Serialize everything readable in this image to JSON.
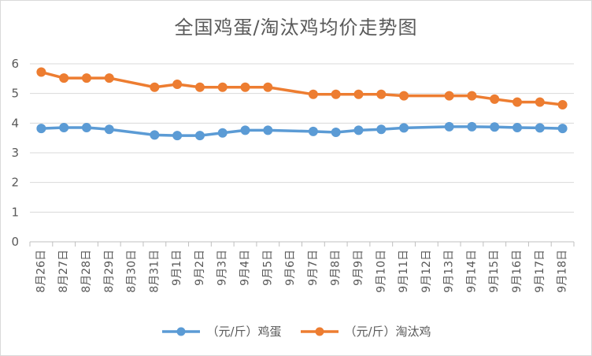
{
  "chart_data": {
    "type": "line",
    "title": "全国鸡蛋/淘汰鸡均价走势图",
    "categories": [
      "8月26日",
      "8月27日",
      "8月28日",
      "8月29日",
      "8月30日",
      "8月31日",
      "9月1日",
      "9月2日",
      "9月3日",
      "9月4日",
      "9月5日",
      "9月6日",
      "9月7日",
      "9月8日",
      "9月9日",
      "9月10日",
      "9月11日",
      "9月12日",
      "9月13日",
      "9月14日",
      "9月15日",
      "9月16日",
      "9月17日",
      "9月18日"
    ],
    "series": [
      {
        "name": "（元/斤）鸡蛋",
        "color": "#5b9bd5",
        "values": [
          3.82,
          3.85,
          3.85,
          3.79,
          null,
          3.6,
          3.58,
          3.58,
          3.67,
          3.76,
          3.76,
          null,
          3.72,
          3.69,
          3.76,
          3.79,
          3.84,
          null,
          3.88,
          3.88,
          3.87,
          3.85,
          3.84,
          3.82
        ]
      },
      {
        "name": "（元/斤）淘汰鸡",
        "color": "#ed7d31",
        "values": [
          5.72,
          5.52,
          5.52,
          5.52,
          null,
          5.21,
          5.31,
          5.21,
          5.21,
          5.21,
          5.21,
          null,
          4.97,
          4.97,
          4.97,
          4.97,
          4.92,
          null,
          4.92,
          4.92,
          4.81,
          4.71,
          4.71,
          4.62
        ]
      }
    ],
    "ylim": [
      0,
      6
    ],
    "yticks": [
      0,
      1,
      2,
      3,
      4,
      5,
      6
    ],
    "xlabel": "",
    "ylabel": "",
    "grid": true,
    "legend_position": "bottom"
  }
}
